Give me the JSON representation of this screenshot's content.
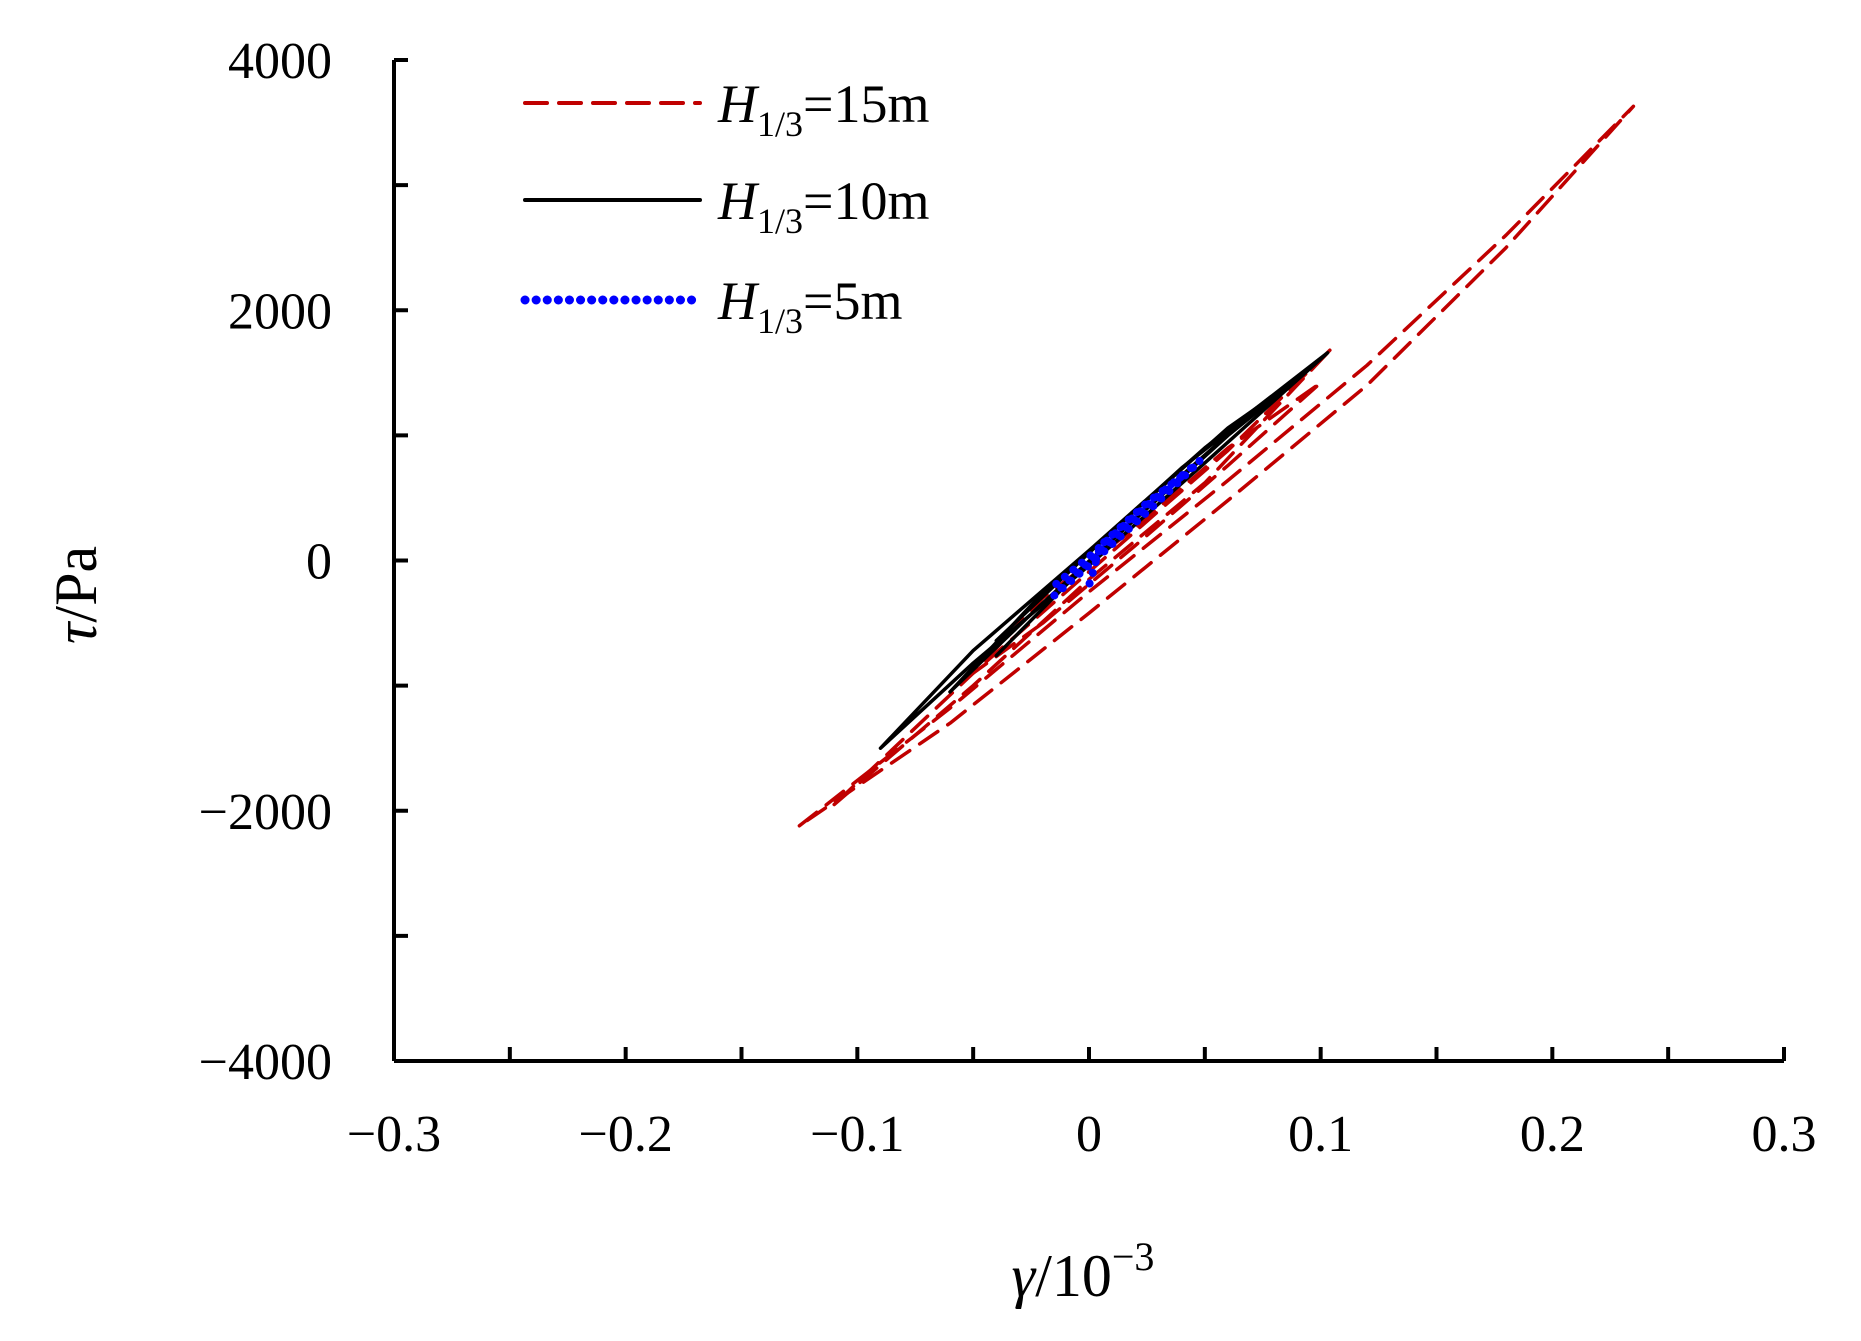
{
  "chart_data": {
    "type": "line",
    "xlabel": {
      "symbol": "γ",
      "unit": "/10",
      "exp": "−3"
    },
    "ylabel": {
      "symbol": "τ",
      "unit": "/Pa"
    },
    "xlim": [
      -0.3,
      0.3
    ],
    "ylim": [
      -4000,
      4000
    ],
    "x_major_ticks": [
      -0.3,
      -0.2,
      -0.1,
      0,
      0.1,
      0.2,
      0.3
    ],
    "x_tick_labels": [
      "−0.3",
      "−0.2",
      "−0.1",
      "0",
      "0.1",
      "0.2",
      "0.3"
    ],
    "x_minor_ticks": [
      -0.25,
      -0.15,
      -0.05,
      0.05,
      0.15,
      0.25
    ],
    "y_major_ticks": [
      -4000,
      -2000,
      0,
      2000,
      4000
    ],
    "y_tick_labels": [
      "−4000",
      "−2000",
      "0",
      "2000",
      "4000"
    ],
    "y_minor_ticks": [
      -3000,
      -1000,
      1000,
      3000
    ],
    "grid": false,
    "legend_position": "top-left",
    "series": [
      {
        "name": "H1/3=15m",
        "legend": {
          "base": "H",
          "sub": "1/3",
          "rest": "=15m"
        },
        "color": "#c00000",
        "style": "dashed",
        "loops": [
          [
            [
              -0.125,
              -2120
            ],
            [
              -0.06,
              -1180
            ],
            [
              0.0,
              -250
            ],
            [
              0.06,
              640
            ],
            [
              0.12,
              1560
            ],
            [
              0.18,
              2600
            ],
            [
              0.235,
              3630
            ],
            [
              0.18,
              2500
            ],
            [
              0.12,
              1400
            ],
            [
              0.06,
              480
            ],
            [
              0.0,
              -420
            ],
            [
              -0.06,
              -1300
            ],
            [
              -0.125,
              -2120
            ]
          ],
          [
            [
              -0.11,
              -1950
            ],
            [
              -0.05,
              -1000
            ],
            [
              0.0,
              -150
            ],
            [
              0.05,
              620
            ],
            [
              0.105,
              1700
            ],
            [
              0.06,
              880
            ],
            [
              0.0,
              -90
            ],
            [
              -0.05,
              -900
            ],
            [
              -0.11,
              -1950
            ]
          ],
          [
            [
              -0.02,
              -500
            ],
            [
              0.02,
              120
            ],
            [
              0.06,
              760
            ],
            [
              0.1,
              1420
            ],
            [
              0.06,
              900
            ],
            [
              0.02,
              260
            ],
            [
              -0.02,
              -300
            ],
            [
              -0.05,
              -900
            ],
            [
              -0.02,
              -500
            ]
          ]
        ]
      },
      {
        "name": "H1/3=10m",
        "legend": {
          "base": "H",
          "sub": "1/3",
          "rest": "=10m"
        },
        "color": "#000000",
        "style": "solid",
        "loops": [
          [
            [
              -0.09,
              -1500
            ],
            [
              -0.05,
              -820
            ],
            [
              0.0,
              -40
            ],
            [
              0.05,
              780
            ],
            [
              0.103,
              1660
            ],
            [
              0.05,
              900
            ],
            [
              0.0,
              80
            ],
            [
              -0.05,
              -720
            ],
            [
              -0.09,
              -1500
            ]
          ],
          [
            [
              -0.06,
              -1050
            ],
            [
              -0.02,
              -340
            ],
            [
              0.02,
              330
            ],
            [
              0.06,
              1000
            ],
            [
              0.09,
              1450
            ],
            [
              0.06,
              1060
            ],
            [
              0.02,
              400
            ],
            [
              -0.02,
              -260
            ],
            [
              -0.06,
              -1050
            ]
          ],
          [
            [
              -0.04,
              -760
            ],
            [
              0.0,
              -10
            ],
            [
              0.04,
              680
            ],
            [
              0.075,
              1250
            ],
            [
              0.04,
              740
            ],
            [
              0.0,
              60
            ],
            [
              -0.04,
              -640
            ]
          ]
        ]
      },
      {
        "name": "H1/3=5m",
        "legend": {
          "base": "H",
          "sub": "1/3",
          "rest": "=5m"
        },
        "color": "#0000ff",
        "style": "dotted",
        "loops": [
          [
            [
              -0.015,
              -280
            ],
            [
              0.0,
              -40
            ],
            [
              0.02,
              300
            ],
            [
              0.035,
              560
            ],
            [
              0.048,
              800
            ],
            [
              0.035,
              600
            ],
            [
              0.02,
              360
            ],
            [
              0.0,
              30
            ],
            [
              -0.015,
              -200
            ]
          ],
          [
            [
              -0.012,
              -220
            ],
            [
              0.005,
              80
            ],
            [
              0.025,
              420
            ],
            [
              0.042,
              700
            ],
            [
              0.025,
              460
            ],
            [
              0.005,
              120
            ],
            [
              0.0,
              -200
            ]
          ]
        ]
      }
    ]
  }
}
